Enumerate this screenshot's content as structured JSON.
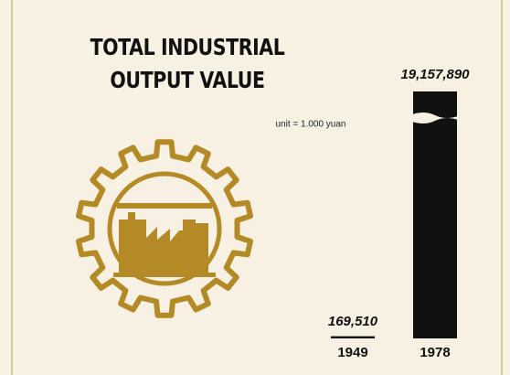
{
  "chart_data": {
    "type": "bar",
    "title": "TOTAL INDUSTRIAL OUTPUT VALUE",
    "annotation": "unit = 1.000 yuan",
    "categories": [
      "1949",
      "1978"
    ],
    "values": [
      169510,
      19157890
    ],
    "value_labels": [
      "169,510",
      "19,157,890"
    ],
    "color": "#111111"
  }
}
